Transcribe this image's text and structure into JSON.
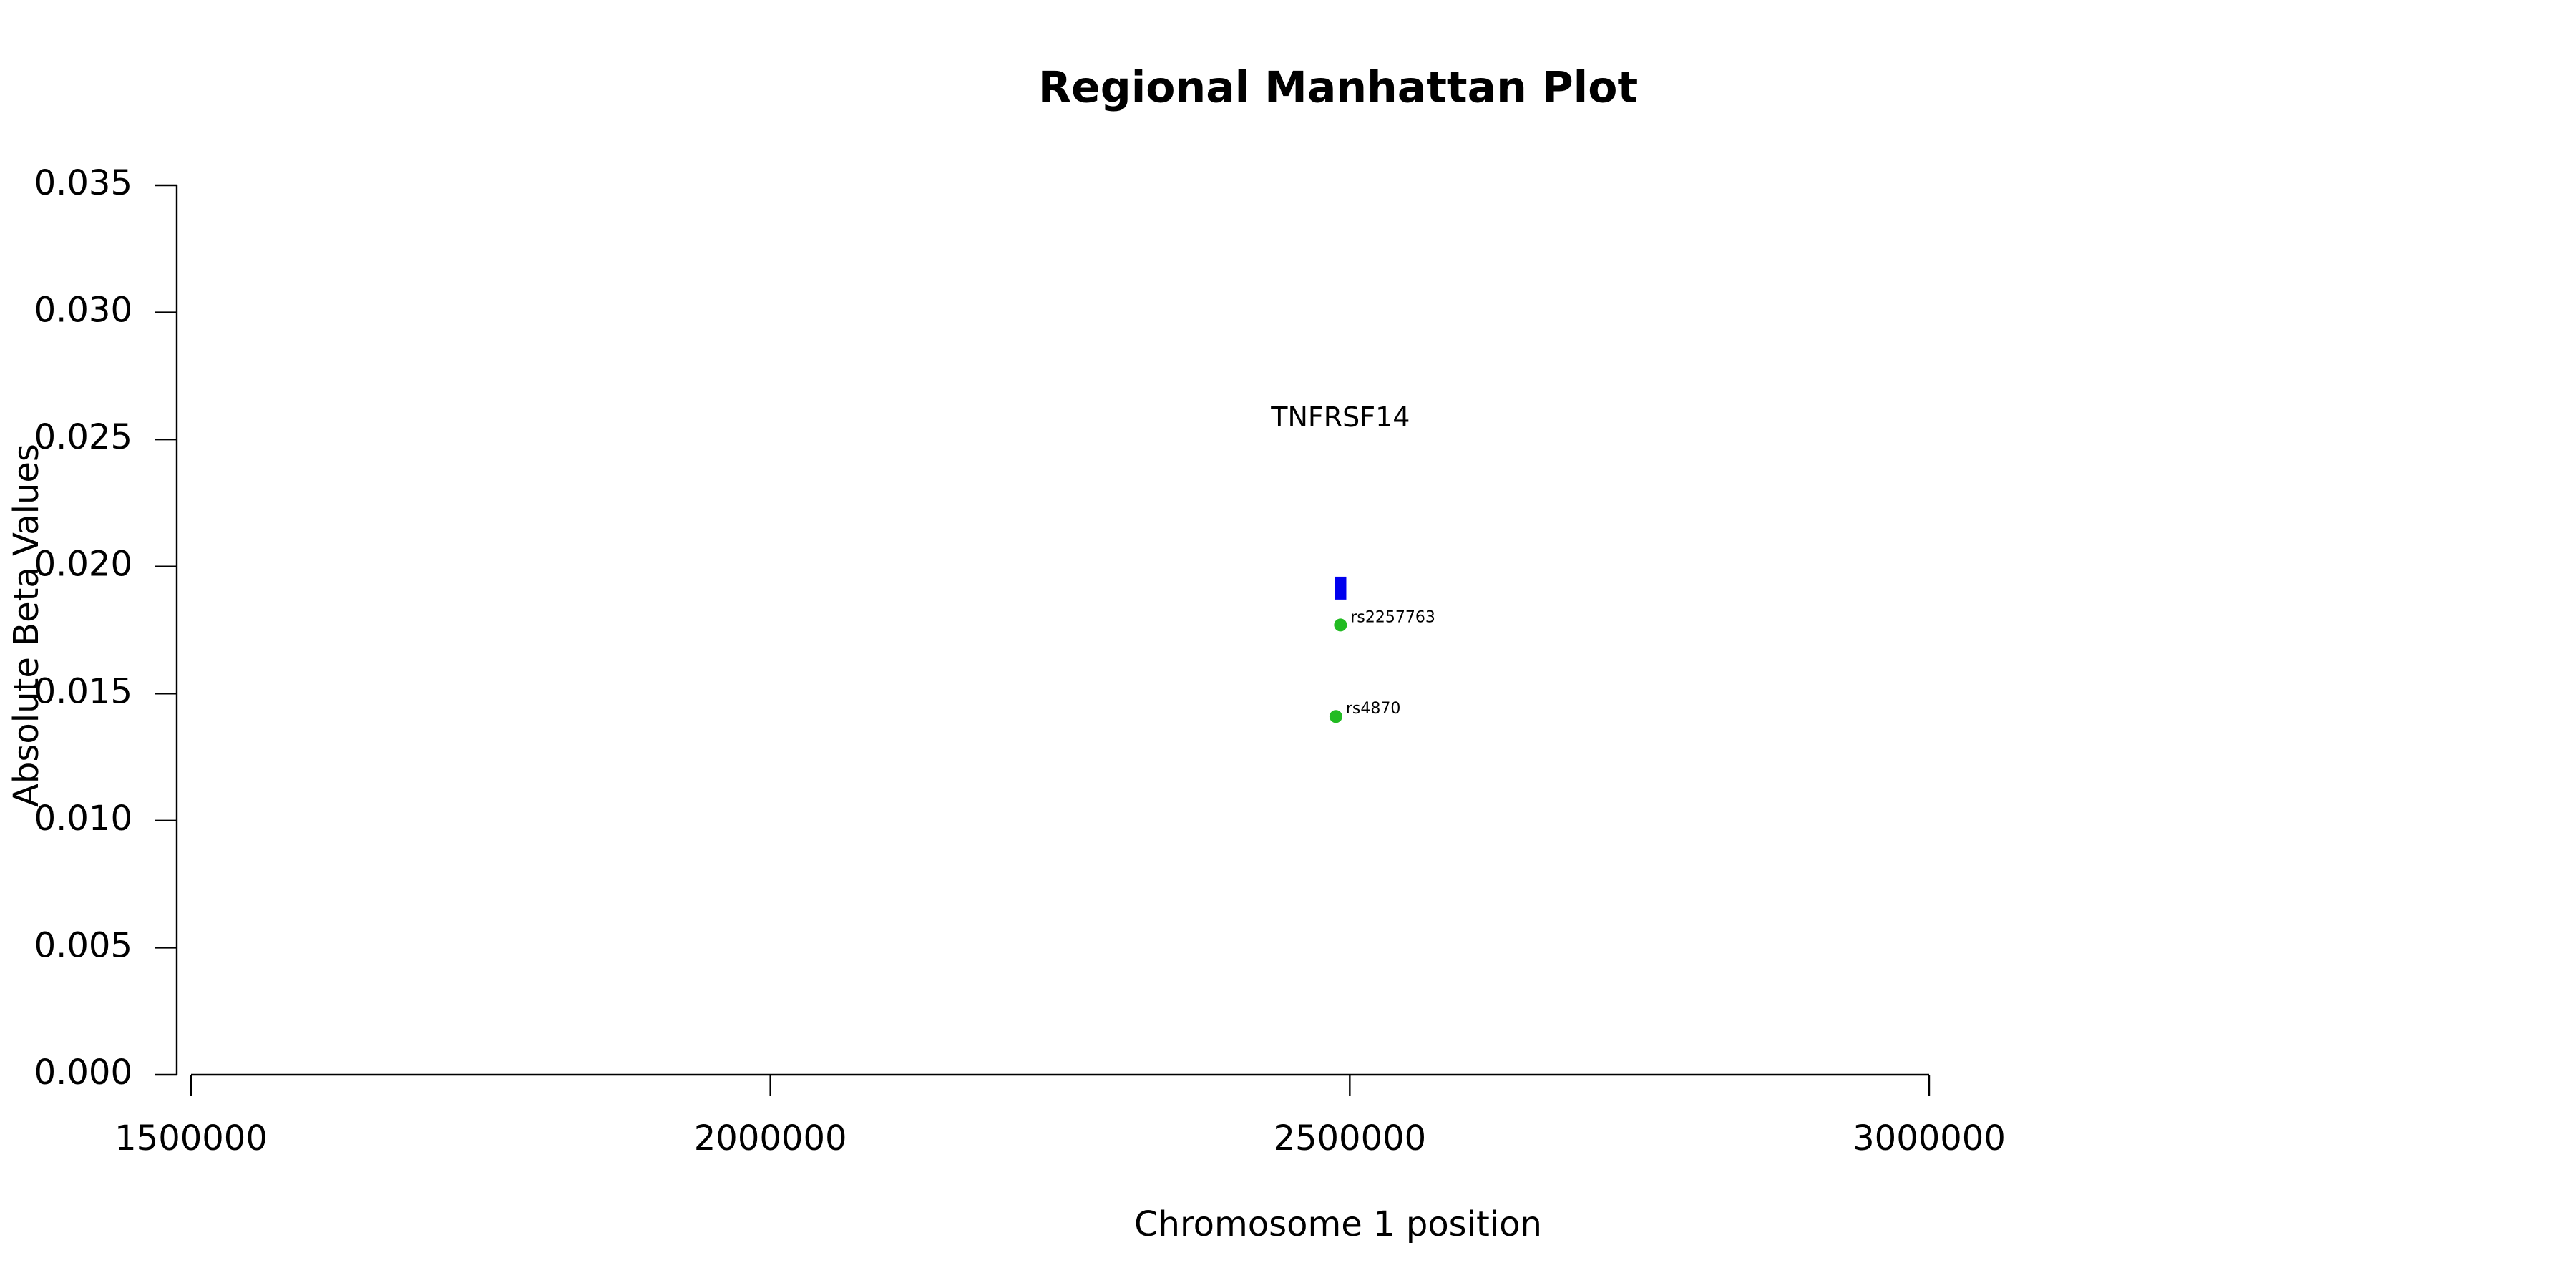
{
  "chart_data": {
    "type": "scatter",
    "title": "Regional Manhattan Plot",
    "xlabel": "Chromosome 1 position",
    "ylabel": "Absolute Beta Values",
    "xlim": [
      1500000,
      3000000
    ],
    "ylim": [
      0,
      0.035
    ],
    "xticks": [
      1500000,
      2000000,
      2500000,
      3000000
    ],
    "xtick_labels": [
      "1500000",
      "2000000",
      "2500000",
      "3000000"
    ],
    "yticks": [
      0,
      0.005,
      0.01,
      0.015,
      0.02,
      0.025,
      0.03,
      0.035
    ],
    "ytick_labels": [
      "0.000",
      "0.005",
      "0.010",
      "0.015",
      "0.020",
      "0.025",
      "0.030",
      "0.035"
    ],
    "grid": false,
    "legend": "none",
    "series": [
      {
        "color": "#22bb22",
        "points": [
          {
            "label": "rs2257763",
            "x": 2492000,
            "y": 0.0177
          },
          {
            "label": "rs4870",
            "x": 2488000,
            "y": 0.0141
          }
        ]
      }
    ],
    "genes": [
      {
        "name": "TNFRSF14",
        "start": 2487000,
        "end": 2497000,
        "y_bottom": 0.0187,
        "y_top": 0.0196,
        "label_y": 0.0258,
        "color": "#0000ee"
      }
    ]
  }
}
